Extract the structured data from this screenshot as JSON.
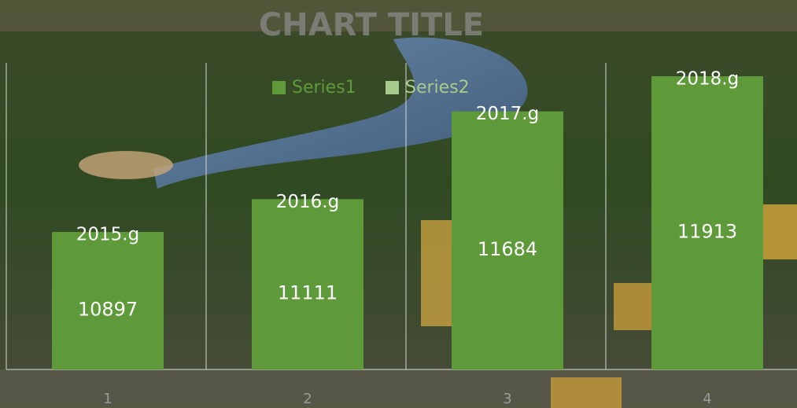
{
  "chart_data": {
    "type": "bar",
    "title": "CHART TITLE",
    "categories": [
      "1",
      "2",
      "3",
      "4"
    ],
    "series": [
      {
        "name": "Series1",
        "color": "#5e9a3a",
        "values": [
          10897,
          11111,
          11684,
          11913
        ]
      },
      {
        "name": "Series2",
        "color": "#a6cc8c"
      }
    ],
    "annotations": [
      "2015.g",
      "2016.g",
      "2017.g",
      "2018.g"
    ],
    "ylim": [
      10000,
      12000
    ]
  }
}
